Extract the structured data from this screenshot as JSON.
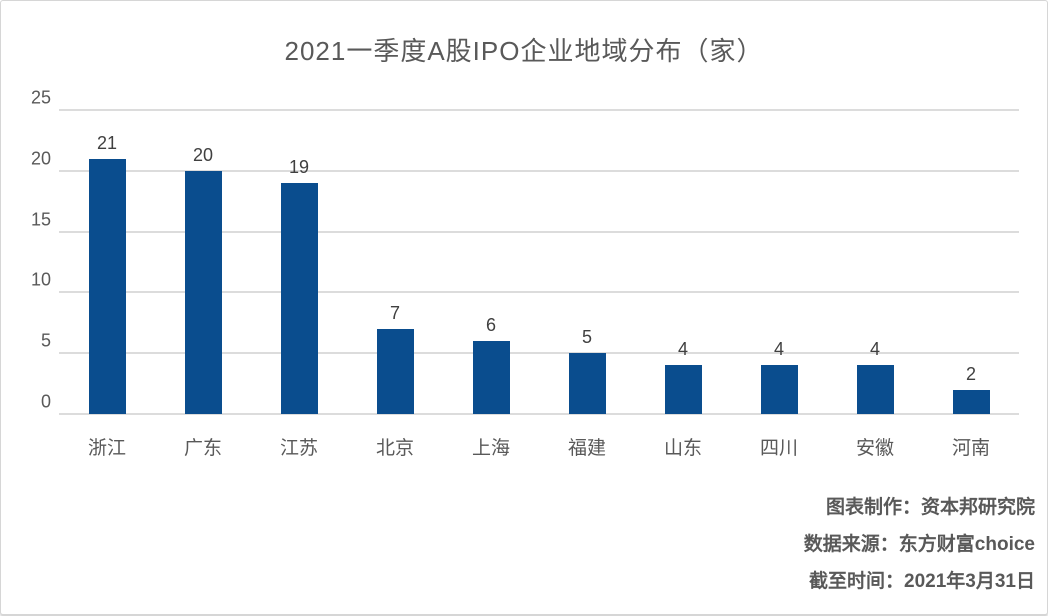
{
  "chart_data": {
    "type": "bar",
    "title": "2021一季度A股IPO企业地域分布（家）",
    "categories": [
      "浙江",
      "广东",
      "江苏",
      "北京",
      "上海",
      "福建",
      "山东",
      "四川",
      "安徽",
      "河南"
    ],
    "values": [
      21,
      20,
      19,
      7,
      6,
      5,
      4,
      4,
      4,
      2
    ],
    "xlabel": "",
    "ylabel": "",
    "ylim": [
      0,
      25
    ],
    "yticks": [
      0,
      5,
      10,
      15,
      20,
      25
    ],
    "grid": true,
    "legend": "none",
    "value_labels_shown": true,
    "bar_color": "#0a4d8e",
    "grid_color": "#dcdcdc",
    "axis_text_color": "#595959",
    "value_label_color": "#404040",
    "title_color": "#595959"
  },
  "footer": {
    "lines": [
      "图表制作：资本邦研究院",
      "数据来源：东方财富choice",
      "截至时间：2021年3月31日"
    ]
  }
}
